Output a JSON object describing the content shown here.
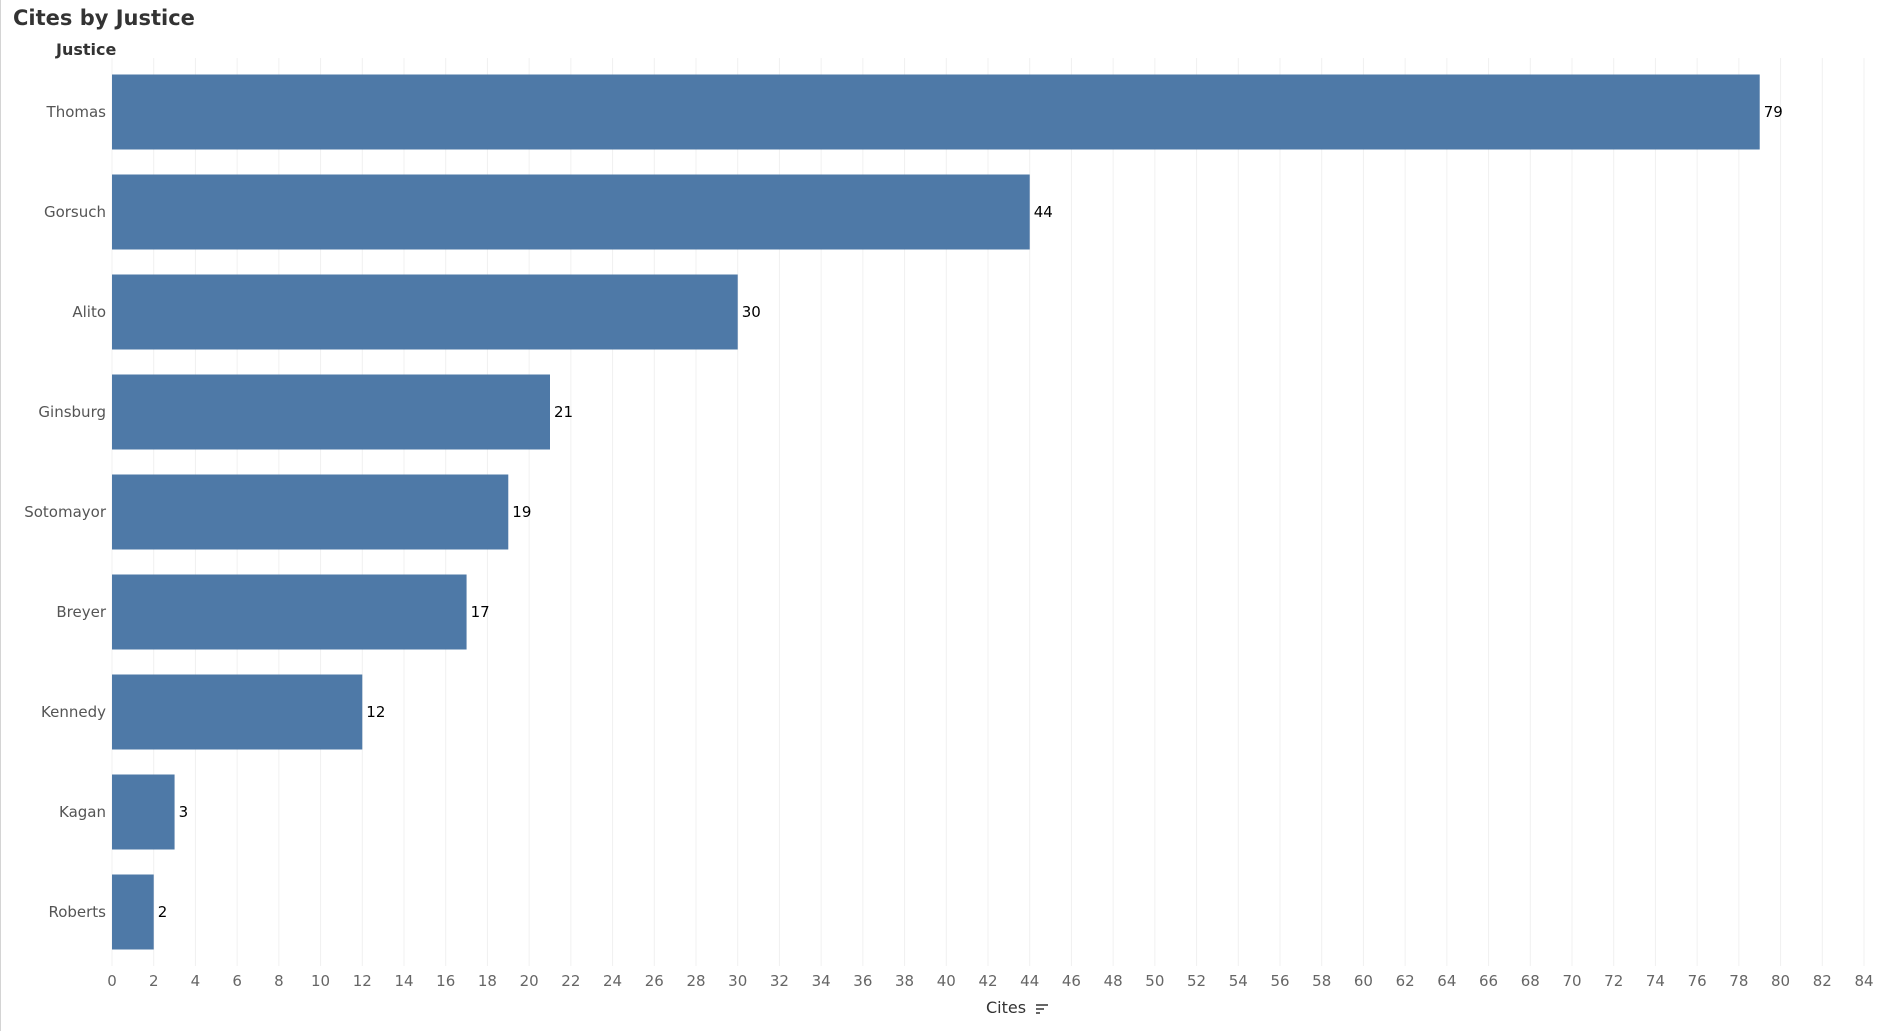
{
  "chart_data": {
    "type": "bar",
    "orientation": "horizontal",
    "title": "Cites by Justice",
    "ylabel": "Justice",
    "xlabel": "Cites",
    "categories": [
      "Thomas",
      "Gorsuch",
      "Alito",
      "Ginsburg",
      "Sotomayor",
      "Breyer",
      "Kennedy",
      "Kagan",
      "Roberts"
    ],
    "values": [
      79,
      44,
      30,
      21,
      19,
      17,
      12,
      3,
      2
    ],
    "data_labels": [
      "79",
      "44",
      "30",
      "21",
      "19",
      "17",
      "12",
      "3",
      "2"
    ],
    "xlim": [
      0,
      84
    ],
    "x_ticks": [
      "0",
      "2",
      "4",
      "6",
      "8",
      "10",
      "12",
      "14",
      "16",
      "18",
      "20",
      "22",
      "24",
      "26",
      "28",
      "30",
      "32",
      "34",
      "36",
      "38",
      "40",
      "42",
      "44",
      "46",
      "48",
      "50",
      "52",
      "54",
      "56",
      "58",
      "60",
      "62",
      "64",
      "66",
      "68",
      "70",
      "72",
      "74",
      "76",
      "78",
      "80",
      "82",
      "84"
    ],
    "grid": "vertical",
    "legend": "none",
    "bar_color": "#4e79a7",
    "grid_color": "#f0f0f0",
    "sort_indicator": "sort-descending-icon"
  }
}
